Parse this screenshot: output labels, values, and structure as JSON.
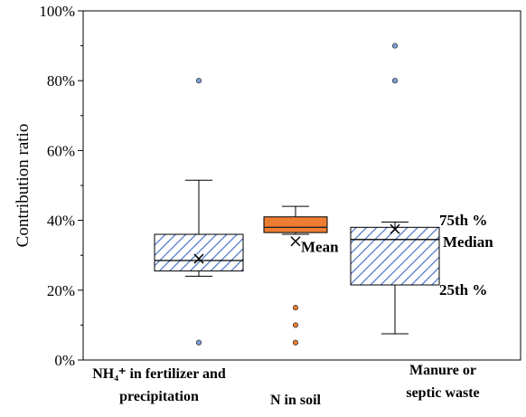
{
  "chart_data": {
    "type": "box",
    "title": "",
    "xlabel": "",
    "ylabel": "Contribution ratio",
    "ylim": [
      0,
      100
    ],
    "yticks": [
      "0%",
      "20%",
      "40%",
      "60%",
      "80%",
      "100%"
    ],
    "categories": [
      {
        "line1": "NH₄⁺ in fertilizer and",
        "line2": "precipitation"
      },
      {
        "line1": "N in soil",
        "line2": ""
      },
      {
        "line1": "Manure or",
        "line2": "septic waste"
      }
    ],
    "series": [
      {
        "whisker_low": 24,
        "q1": 25.5,
        "median": 28.5,
        "q3": 36,
        "whisker_high": 51.5,
        "mean": 29,
        "outliers": [
          80,
          5
        ],
        "style": "hatched",
        "color": "#4a72c4"
      },
      {
        "whisker_low": 36,
        "q1": 36.5,
        "median": 38,
        "q3": 41,
        "whisker_high": 44,
        "mean": 34,
        "outliers": [
          15,
          10,
          5
        ],
        "style": "solid",
        "color": "#ed7d31"
      },
      {
        "whisker_low": 7.5,
        "q1": 21.5,
        "median": 34.5,
        "q3": 38,
        "whisker_high": 39.5,
        "mean": 37.5,
        "outliers": [
          90,
          80
        ],
        "style": "hatched",
        "color": "#4a72c4"
      }
    ],
    "annotations": {
      "mean": "Mean",
      "q3": "75th %",
      "median": "Median",
      "q1": "25th %"
    },
    "grid": false,
    "legend": "none"
  }
}
